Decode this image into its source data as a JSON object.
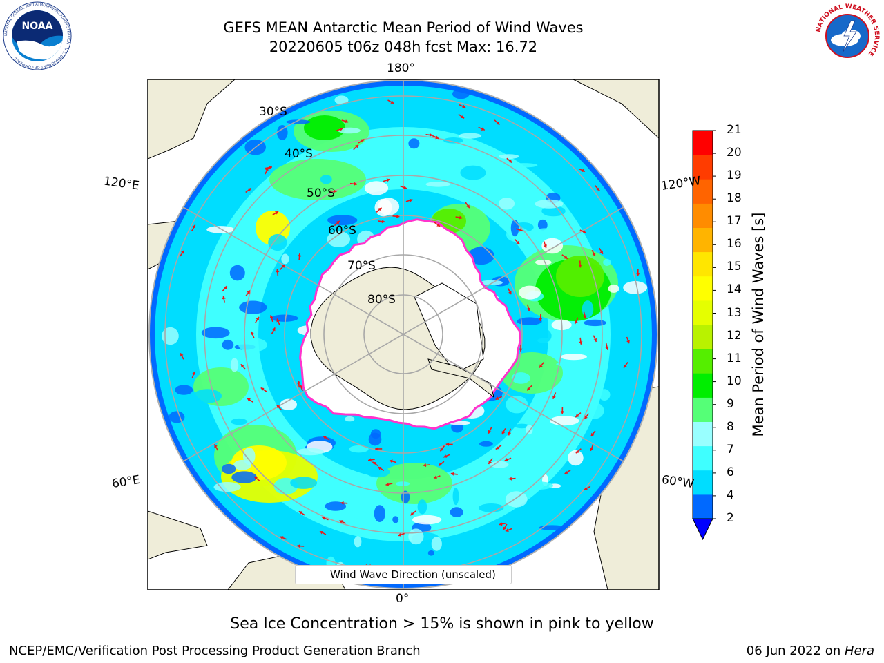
{
  "title": {
    "line1": "GEFS MEAN Antarctic Mean Period of Wind Waves",
    "line2": "20220605 t06z 048h fcst   Max: 16.72"
  },
  "map": {
    "projection": "south polar stereographic",
    "lon_labels": {
      "top": "180°",
      "bottom": "0°",
      "left_upper": "120°E",
      "left_lower": "60°E",
      "right_upper": "120°W",
      "right_lower": "60°W"
    },
    "lat_labels": [
      "30°S",
      "40°S",
      "50°S",
      "60°S",
      "70°S",
      "80°S"
    ],
    "legend": "Wind Wave Direction (unscaled)",
    "arrow_color": "#e8191a",
    "land_color": "#efedd9",
    "ice_edge_color": "#ff33cc"
  },
  "colorbar": {
    "label": "Mean Period of Wind Waves [s]",
    "ticks": [
      "2",
      "4",
      "6",
      "7",
      "8",
      "9",
      "10",
      "11",
      "12",
      "13",
      "14",
      "15",
      "16",
      "17",
      "18",
      "19",
      "20",
      "21"
    ],
    "colors": [
      "#0069ff",
      "#00ddff",
      "#3fffff",
      "#99ffff",
      "#55ff77",
      "#00ee00",
      "#55ee00",
      "#b9f200",
      "#e5ff00",
      "#ffff00",
      "#ffe600",
      "#ffb400",
      "#ff8c00",
      "#ff6400",
      "#ff3c00",
      "#ff0000"
    ],
    "extend_color": "#0000ff"
  },
  "footer": {
    "ice_note": "Sea Ice Concentration > 15% is shown in pink to yellow",
    "credit": "NCEP/EMC/Verification Post Processing Product Generation Branch",
    "date": "06 Jun 2022 on ",
    "host": "Hera"
  },
  "logos": {
    "noaa_text": "NOAA",
    "noaa_ring": "NATIONAL OCEANIC AND ATMOSPHERIC ADMINISTRATION · U.S. DEPARTMENT OF COMMERCE",
    "nws_ring": "NATIONAL WEATHER SERVICE"
  }
}
